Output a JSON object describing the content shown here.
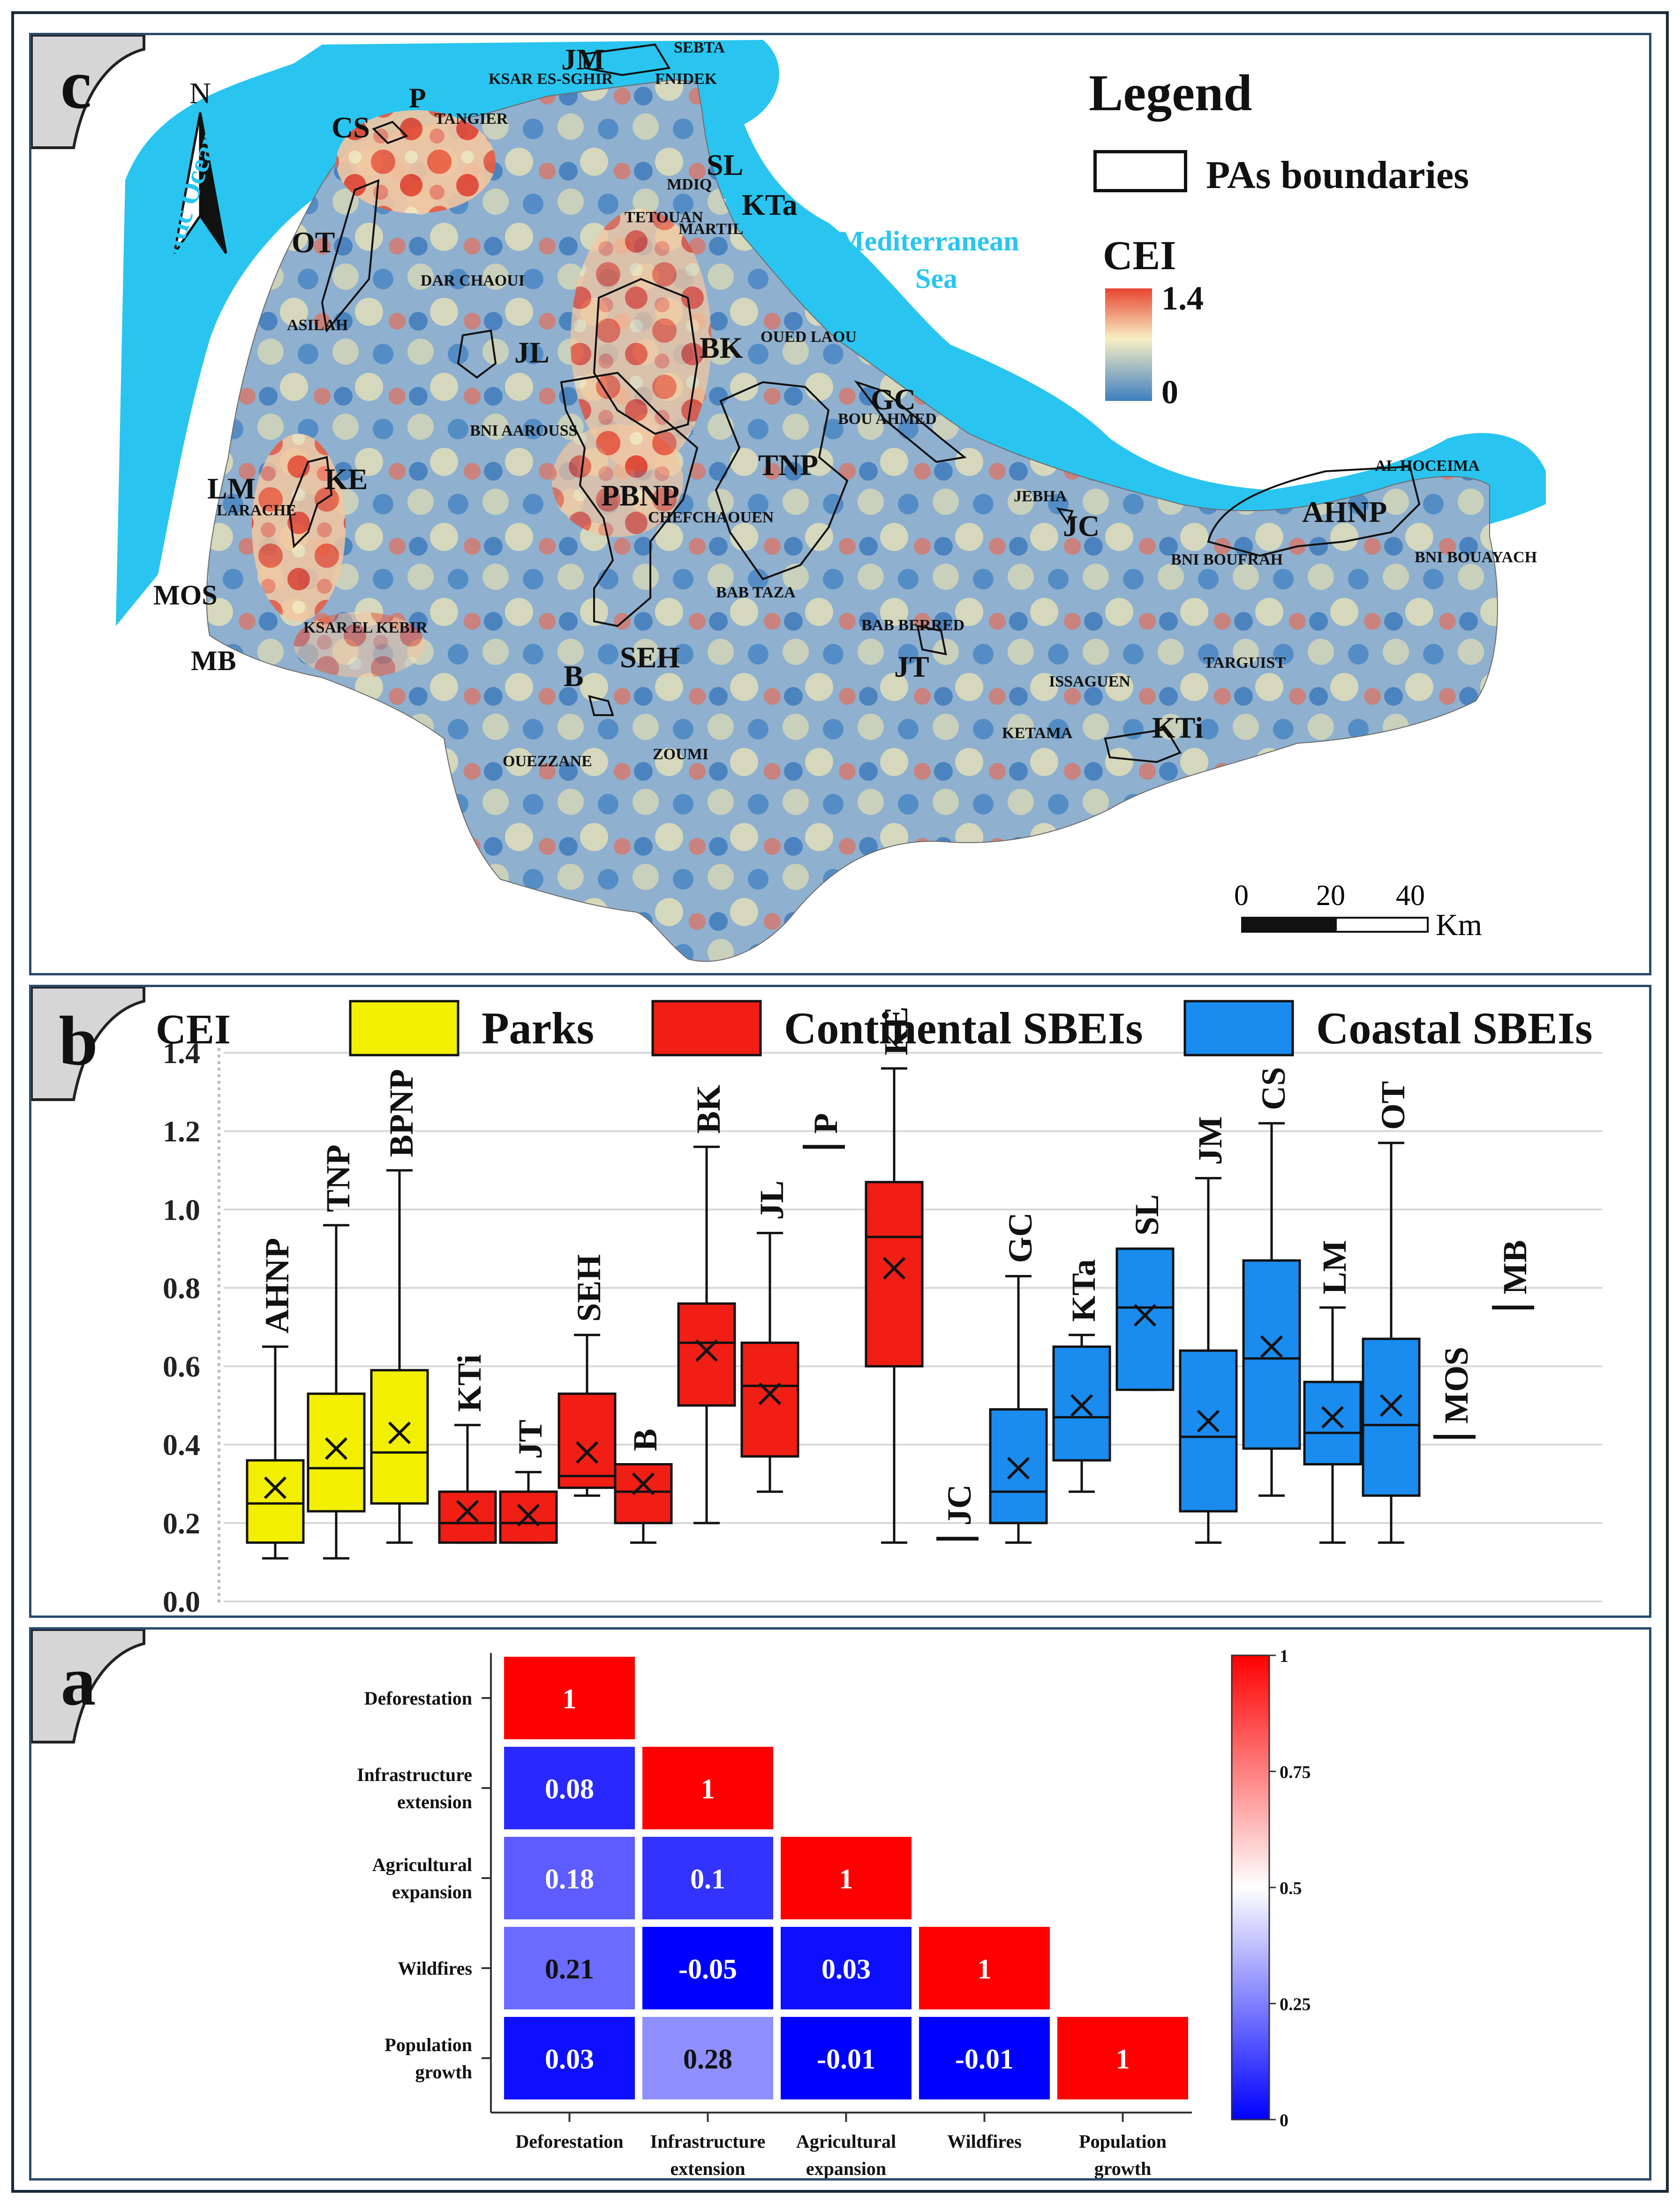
{
  "panels": {
    "c": {
      "letter": "c"
    },
    "b": {
      "letter": "b"
    },
    "a": {
      "letter": "a"
    }
  },
  "map": {
    "north": "N",
    "legend_title": "Legend",
    "pas_label": "PAs boundaries",
    "cei_label": "CEI",
    "cei_max": "1.4",
    "cei_min": "0",
    "sea_atlantic": "Atlantic Ocean",
    "sea_med_1": "Mediterranean",
    "sea_med_2": "Sea",
    "scale_0": "0",
    "scale_20": "20",
    "scale_40": "40",
    "scale_unit": "Km",
    "colors": {
      "sea": "#29c5f0",
      "high": "#e8452f",
      "mid": "#f5eec3",
      "low": "#3d7fc0"
    },
    "pa_labels": [
      "JM",
      "CS",
      "P",
      "SL",
      "KTa",
      "OT",
      "JL",
      "BK",
      "GC",
      "TNP",
      "PBNP",
      "LM",
      "KE",
      "MOS",
      "MB",
      "SEH",
      "B",
      "JT",
      "JC",
      "AHNP",
      "KTi"
    ],
    "towns": [
      "SEBTA",
      "KSAR ES-SGHIR",
      "FNIDEK",
      "TANGIER",
      "MDIQ",
      "MARTIL",
      "TETOUAN",
      "DAR CHAOUI",
      "ASILAH",
      "OUED LAOU",
      "BOU AHMED",
      "BNI AAROUSS",
      "LARACHE",
      "CHEFCHAOUEN",
      "JEBHA",
      "AL HOCEIMA",
      "BNI BOUFRAH",
      "BNI BOUAYACH",
      "BAB TAZA",
      "BAB BERRED",
      "KSAR EL KEBIR",
      "ISSAGUEN",
      "TARGUIST",
      "KETAMA",
      "OUEZZANE",
      "ZOUMI"
    ]
  },
  "chart_data": [
    {
      "type": "box",
      "title": "",
      "ylabel": "CEI",
      "ylim": [
        0,
        1.4
      ],
      "yticks": [
        "0.0",
        "0.2",
        "0.4",
        "0.6",
        "0.8",
        "1.0",
        "1.2",
        "1.4"
      ],
      "legend": [
        {
          "name": "Parks",
          "color": "#f2f000"
        },
        {
          "name": "Continental SBEIs",
          "color": "#f01e14"
        },
        {
          "name": "Coastal SBEIs",
          "color": "#1a8cf0"
        }
      ],
      "boxes": [
        {
          "label": "AHNP",
          "group": "Parks",
          "min": 0.11,
          "q1": 0.15,
          "median": 0.25,
          "q3": 0.36,
          "max": 0.65,
          "mean": 0.29
        },
        {
          "label": "TNP",
          "group": "Parks",
          "min": 0.11,
          "q1": 0.23,
          "median": 0.34,
          "q3": 0.53,
          "max": 0.96,
          "mean": 0.39
        },
        {
          "label": "BPNP",
          "group": "Parks",
          "min": 0.15,
          "q1": 0.25,
          "median": 0.38,
          "q3": 0.59,
          "max": 1.1,
          "mean": 0.43
        },
        {
          "label": "KTi",
          "group": "Continental SBEIs",
          "min": 0.15,
          "q1": 0.15,
          "median": 0.2,
          "q3": 0.28,
          "max": 0.45,
          "mean": 0.23
        },
        {
          "label": "JT",
          "group": "Continental SBEIs",
          "min": 0.15,
          "q1": 0.15,
          "median": 0.2,
          "q3": 0.28,
          "max": 0.33,
          "mean": 0.22
        },
        {
          "label": "SEH",
          "group": "Continental SBEIs",
          "min": 0.27,
          "q1": 0.29,
          "median": 0.32,
          "q3": 0.53,
          "max": 0.68,
          "mean": 0.38
        },
        {
          "label": "B",
          "group": "Continental SBEIs",
          "min": 0.15,
          "q1": 0.2,
          "median": 0.28,
          "q3": 0.35,
          "max": 0.35,
          "mean": 0.3
        },
        {
          "label": "BK",
          "group": "Continental SBEIs",
          "min": 0.2,
          "q1": 0.5,
          "median": 0.66,
          "q3": 0.76,
          "max": 1.16,
          "mean": 0.64
        },
        {
          "label": "JL",
          "group": "Continental SBEIs",
          "min": 0.28,
          "q1": 0.37,
          "median": 0.55,
          "q3": 0.66,
          "max": 0.94,
          "mean": 0.53
        },
        {
          "label": "P",
          "group": "Continental SBEIs",
          "min": 1.16,
          "q1": 1.16,
          "median": 1.16,
          "q3": 1.16,
          "max": 1.16,
          "mean": 1.16
        },
        {
          "label": "KE",
          "group": "Continental SBEIs",
          "min": 0.15,
          "q1": 0.6,
          "median": 0.93,
          "q3": 1.07,
          "max": 1.36,
          "mean": 0.85
        },
        {
          "label": "JC",
          "group": "Coastal SBEIs",
          "min": 0.16,
          "q1": 0.16,
          "median": 0.16,
          "q3": 0.16,
          "max": 0.16,
          "mean": 0.16
        },
        {
          "label": "GC",
          "group": "Coastal SBEIs",
          "min": 0.15,
          "q1": 0.2,
          "median": 0.28,
          "q3": 0.49,
          "max": 0.83,
          "mean": 0.34
        },
        {
          "label": "KTa",
          "group": "Coastal SBEIs",
          "min": 0.28,
          "q1": 0.36,
          "median": 0.47,
          "q3": 0.65,
          "max": 0.68,
          "mean": 0.5
        },
        {
          "label": "SL",
          "group": "Coastal SBEIs",
          "min": 0.54,
          "q1": 0.54,
          "median": 0.75,
          "q3": 0.9,
          "max": 0.9,
          "mean": 0.73
        },
        {
          "label": "JM",
          "group": "Coastal SBEIs",
          "min": 0.15,
          "q1": 0.23,
          "median": 0.42,
          "q3": 0.64,
          "max": 1.08,
          "mean": 0.46
        },
        {
          "label": "CS",
          "group": "Coastal SBEIs",
          "min": 0.27,
          "q1": 0.39,
          "median": 0.62,
          "q3": 0.87,
          "max": 1.22,
          "mean": 0.65
        },
        {
          "label": "LM",
          "group": "Coastal SBEIs",
          "min": 0.15,
          "q1": 0.35,
          "median": 0.43,
          "q3": 0.56,
          "max": 0.75,
          "mean": 0.47
        },
        {
          "label": "OT",
          "group": "Coastal SBEIs",
          "min": 0.15,
          "q1": 0.27,
          "median": 0.45,
          "q3": 0.67,
          "max": 1.17,
          "mean": 0.5
        },
        {
          "label": "MOS",
          "group": "Coastal SBEIs",
          "min": 0.42,
          "q1": 0.42,
          "median": 0.42,
          "q3": 0.42,
          "max": 0.42,
          "mean": 0.42
        },
        {
          "label": "MB",
          "group": "Coastal SBEIs",
          "min": 0.75,
          "q1": 0.75,
          "median": 0.75,
          "q3": 0.75,
          "max": 0.75,
          "mean": 0.75
        }
      ]
    },
    {
      "type": "heatmap",
      "title": "",
      "variables": [
        "Deforestation",
        "Infrastructure extension",
        "Agricultural expansion",
        "Wildfires",
        "Population growth"
      ],
      "row_labels": [
        [
          "Deforestation"
        ],
        [
          "Infrastructure",
          "extension"
        ],
        [
          "Agricultural",
          "expansion"
        ],
        [
          "Wildfires"
        ],
        [
          "Population",
          "growth"
        ]
      ],
      "col_labels": [
        [
          "Deforestation"
        ],
        [
          "Infrastructure",
          "extension"
        ],
        [
          "Agricultural",
          "expansion"
        ],
        [
          "Wildfires"
        ],
        [
          "Population",
          "growth"
        ]
      ],
      "matrix": [
        [
          "1"
        ],
        [
          "0.08",
          "1"
        ],
        [
          "0.18",
          "0.1",
          "1"
        ],
        [
          "0.21",
          "-0.05",
          "0.03",
          "1"
        ],
        [
          "0.03",
          "0.28",
          "-0.01",
          "-0.01",
          "1"
        ]
      ],
      "colorbar": {
        "ticks": [
          "1",
          "0.75",
          "0.5",
          "0.25",
          "0"
        ],
        "range": [
          0,
          1
        ]
      }
    }
  ]
}
